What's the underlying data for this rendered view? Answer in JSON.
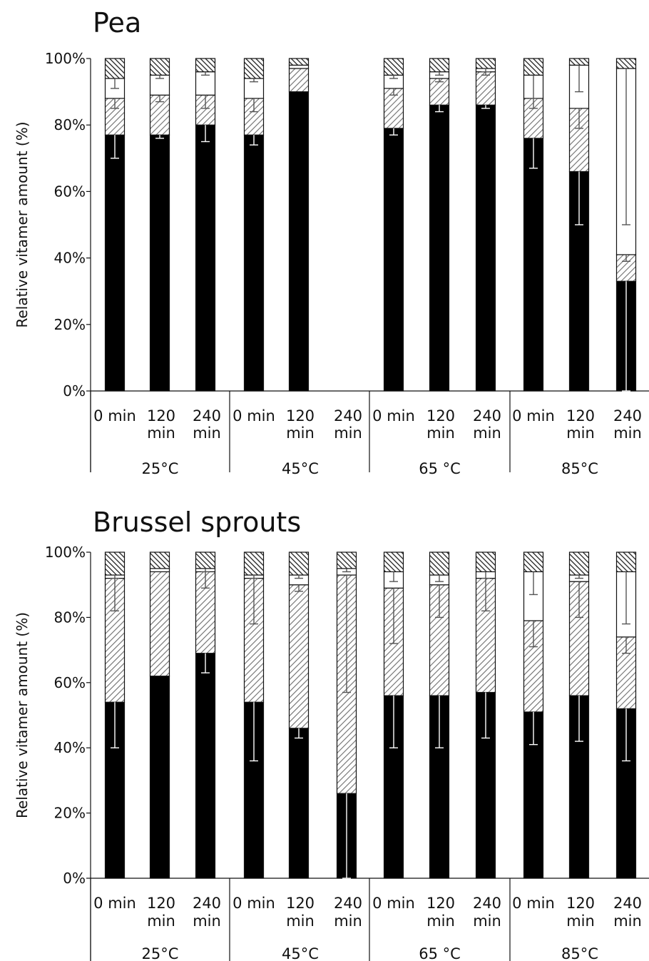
{
  "chart_data": [
    {
      "type": "bar",
      "stacked": true,
      "title": "Pea",
      "ylabel": "Relative vitamer amount (%)",
      "ylim": [
        0,
        100
      ],
      "yticks": [
        "0%",
        "20%",
        "40%",
        "60%",
        "80%",
        "100%"
      ],
      "groups": [
        "25°C",
        "45°C",
        "65 °C",
        "85°C"
      ],
      "time_labels": [
        "0 min",
        "120 min",
        "240 min"
      ],
      "series_patterns": [
        "solid-black",
        "gray-hatch",
        "white",
        "dark-hatch"
      ],
      "bars": [
        {
          "group": "25°C",
          "time": "0 min",
          "values": [
            77,
            11,
            6,
            6
          ],
          "errors": [
            7,
            3,
            3,
            0
          ]
        },
        {
          "group": "25°C",
          "time": "120 min",
          "values": [
            77,
            12,
            6,
            5
          ],
          "errors": [
            1,
            2,
            1,
            0
          ]
        },
        {
          "group": "25°C",
          "time": "240 min",
          "values": [
            80,
            9,
            7,
            4
          ],
          "errors": [
            5,
            4,
            1,
            0
          ]
        },
        {
          "group": "45°C",
          "time": "0 min",
          "values": [
            77,
            11,
            6,
            6
          ],
          "errors": [
            3,
            4,
            1,
            0
          ]
        },
        {
          "group": "45°C",
          "time": "120 min",
          "values": [
            90,
            7,
            1,
            2
          ],
          "errors": [
            0,
            0,
            0,
            0
          ]
        },
        {
          "group": "45°C",
          "time": "240 min",
          "values": [],
          "errors": []
        },
        {
          "group": "65 °C",
          "time": "0 min",
          "values": [
            79,
            12,
            4,
            5
          ],
          "errors": [
            2,
            2,
            1,
            0
          ]
        },
        {
          "group": "65 °C",
          "time": "120 min",
          "values": [
            86,
            8,
            2,
            4
          ],
          "errors": [
            2,
            1,
            1,
            0
          ]
        },
        {
          "group": "65 °C",
          "time": "240 min",
          "values": [
            86,
            10,
            1,
            3
          ],
          "errors": [
            1,
            1,
            1,
            0
          ]
        },
        {
          "group": "85°C",
          "time": "0 min",
          "values": [
            76,
            12,
            7,
            5
          ],
          "errors": [
            9,
            3,
            7,
            0
          ]
        },
        {
          "group": "85°C",
          "time": "120 min",
          "values": [
            66,
            19,
            13,
            2
          ],
          "errors": [
            16,
            6,
            8,
            0
          ]
        },
        {
          "group": "85°C",
          "time": "240 min",
          "values": [
            33,
            8,
            56,
            3
          ],
          "errors": [
            33,
            2,
            47,
            0
          ]
        }
      ]
    },
    {
      "type": "bar",
      "stacked": true,
      "title": "Brussel sprouts",
      "ylabel": "Relative vitamer amount (%)",
      "ylim": [
        0,
        100
      ],
      "yticks": [
        "0%",
        "20%",
        "40%",
        "60%",
        "80%",
        "100%"
      ],
      "groups": [
        "25°C",
        "45°C",
        "65 °C",
        "85°C"
      ],
      "time_labels": [
        "0 min",
        "120 min",
        "240 min"
      ],
      "series_patterns": [
        "solid-black",
        "gray-hatch",
        "white",
        "dark-hatch"
      ],
      "bars": [
        {
          "group": "25°C",
          "time": "0 min",
          "values": [
            54,
            38,
            1,
            7
          ],
          "errors": [
            14,
            10,
            1,
            0
          ]
        },
        {
          "group": "25°C",
          "time": "120 min",
          "values": [
            62,
            32,
            1,
            5
          ],
          "errors": [
            0,
            0,
            0,
            0
          ]
        },
        {
          "group": "25°C",
          "time": "240 min",
          "values": [
            69,
            25,
            1,
            5
          ],
          "errors": [
            6,
            5,
            1,
            0
          ]
        },
        {
          "group": "45°C",
          "time": "0 min",
          "values": [
            54,
            38,
            1,
            7
          ],
          "errors": [
            18,
            14,
            1,
            0
          ]
        },
        {
          "group": "45°C",
          "time": "120 min",
          "values": [
            46,
            44,
            3,
            7
          ],
          "errors": [
            3,
            2,
            1,
            0
          ]
        },
        {
          "group": "45°C",
          "time": "240 min",
          "values": [
            26,
            67,
            2,
            5
          ],
          "errors": [
            26,
            36,
            1,
            0
          ]
        },
        {
          "group": "65 °C",
          "time": "0 min",
          "values": [
            56,
            33,
            5,
            6
          ],
          "errors": [
            16,
            17,
            3,
            0
          ]
        },
        {
          "group": "65 °C",
          "time": "120 min",
          "values": [
            56,
            34,
            3,
            7
          ],
          "errors": [
            16,
            10,
            2,
            0
          ]
        },
        {
          "group": "65 °C",
          "time": "240 min",
          "values": [
            57,
            35,
            2,
            6
          ],
          "errors": [
            14,
            10,
            2,
            0
          ]
        },
        {
          "group": "85°C",
          "time": "0 min",
          "values": [
            51,
            28,
            15,
            6
          ],
          "errors": [
            10,
            8,
            7,
            0
          ]
        },
        {
          "group": "85°C",
          "time": "120 min",
          "values": [
            56,
            35,
            2,
            7
          ],
          "errors": [
            14,
            11,
            1,
            0
          ]
        },
        {
          "group": "85°C",
          "time": "240 min",
          "values": [
            52,
            22,
            20,
            6
          ],
          "errors": [
            16,
            5,
            16,
            0
          ]
        }
      ]
    }
  ]
}
